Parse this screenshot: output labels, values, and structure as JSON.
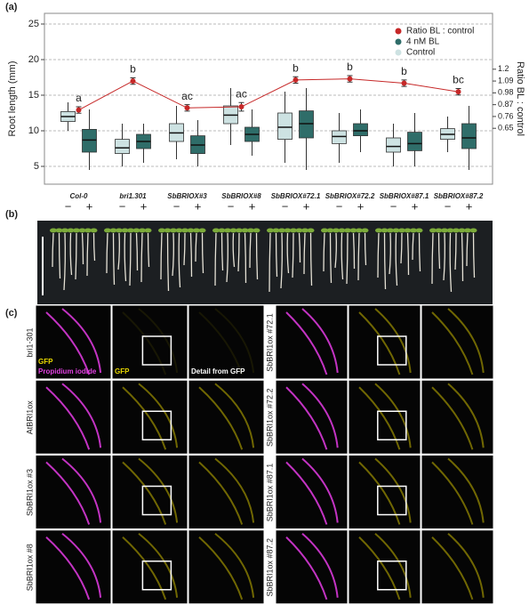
{
  "chart_data": {
    "type": "box",
    "panel_label": "(a)",
    "y_label": "Root length (mm)",
    "y2_label": "Ratio BL : control",
    "categories": [
      "Col-0",
      "bri1.301",
      "SbBRIOX#3",
      "SbBRIOX#8",
      "SbBRIOX#72.1",
      "SbBRIOX#72.2",
      "SbBRIOX#87.1",
      "SbBRIOX#87.2"
    ],
    "treatment_labels": [
      "−",
      "+"
    ],
    "ylim": [
      2.5,
      26.5
    ],
    "yticks": [
      5,
      10,
      15,
      20,
      25
    ],
    "y2lim": [
      0.13,
      1.72
    ],
    "y2ticks": [
      0.65,
      0.76,
      0.87,
      0.98,
      1.09,
      1.2
    ],
    "grid": true,
    "legend": "top-right",
    "series": [
      {
        "name": "Control",
        "color": "#cde2e2",
        "min": [
          10,
          5,
          6,
          8,
          5.5,
          5.5,
          5,
          7
        ],
        "q1": [
          11.3,
          6.8,
          8.5,
          11,
          8.8,
          8.2,
          7,
          8.8
        ],
        "median": [
          12,
          7.6,
          9.7,
          12.2,
          10.5,
          9.2,
          7.8,
          9.5
        ],
        "q3": [
          12.7,
          8.8,
          11,
          13.5,
          12.5,
          10,
          9,
          10.3
        ],
        "max": [
          14,
          11,
          13.5,
          16,
          15.5,
          12.5,
          11,
          12
        ]
      },
      {
        "name": "4 nM BL",
        "color": "#2f6d69",
        "min": [
          4.5,
          5.5,
          5,
          6.5,
          4.5,
          7,
          5,
          4.5
        ],
        "q1": [
          7,
          7.5,
          6.8,
          8.5,
          9,
          9.3,
          7.2,
          7.5
        ],
        "median": [
          8.7,
          8.5,
          8,
          9.5,
          11,
          10,
          8.2,
          9
        ],
        "q3": [
          10.2,
          9.5,
          9.3,
          10.5,
          12.8,
          11,
          9.8,
          11
        ],
        "max": [
          13,
          11,
          11.5,
          13,
          16,
          13,
          12.5,
          13.5
        ]
      },
      {
        "name": "Ratio BL : control",
        "color": "#c62828",
        "axis": "y2",
        "type": "line",
        "values": [
          0.82,
          1.09,
          0.84,
          0.85,
          1.1,
          1.11,
          1.07,
          0.99
        ],
        "errors": [
          0.03,
          0.03,
          0.03,
          0.04,
          0.03,
          0.03,
          0.03,
          0.03
        ],
        "annotations": [
          "a",
          "b",
          "ac",
          "ac",
          "b",
          "b",
          "b",
          "bc"
        ]
      }
    ]
  },
  "panel_b": {
    "label": "(b)"
  },
  "panel_c": {
    "label": "(c)",
    "rows_left": [
      "bri1-301",
      "AtBRI1ox",
      "SbBRI1ox #3",
      "SbBRI1ox #8"
    ],
    "rows_right": [
      "SbBRI1ox #72.1",
      "SbBRI1ox #72.2",
      "SbBRI1ox #87.1",
      "SbBRI1ox #87.2"
    ],
    "overlay_gfp": "GFP",
    "overlay_pi": "Propidium iodide",
    "column_gfp": "GFP",
    "column_detail": "Detail from GFP"
  }
}
